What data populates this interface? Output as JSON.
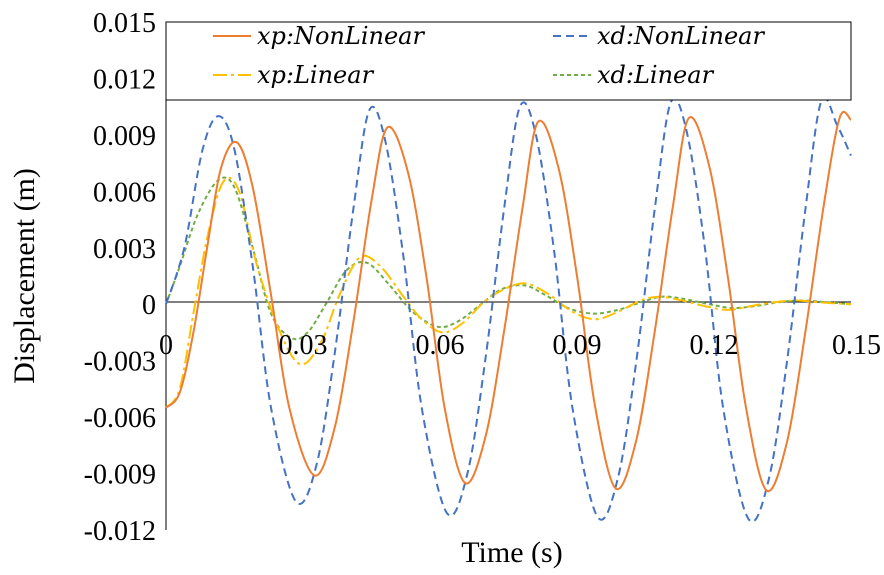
{
  "chart_data": {
    "type": "line",
    "title": "",
    "xlabel": "Time (s)",
    "ylabel": "Displacement (m)",
    "xlim": [
      0,
      0.15
    ],
    "ylim": [
      -0.012,
      0.015
    ],
    "xticks": [
      "0",
      "0.03",
      "0.06",
      "0.09",
      "0.12",
      "0.15"
    ],
    "xtick_values": [
      0,
      0.03,
      0.06,
      0.09,
      0.12,
      0.15
    ],
    "yticks": [
      "0.015",
      "0.012",
      "0.009",
      "0.006",
      "0.003",
      "0",
      "-0.003",
      "-0.006",
      "-0.009",
      "-0.012"
    ],
    "ytick_values": [
      0.015,
      0.012,
      0.009,
      0.006,
      0.003,
      0,
      -0.003,
      -0.006,
      -0.009,
      -0.012
    ],
    "grid": false,
    "legend_position": "top",
    "series": [
      {
        "name": "xp:NonLinear",
        "color": "#ED7D31",
        "dash": "solid",
        "points": [
          [
            0,
            -0.0055
          ],
          [
            0.003,
            -0.0047
          ],
          [
            0.006,
            -0.0015
          ],
          [
            0.009,
            0.003
          ],
          [
            0.012,
            0.0072
          ],
          [
            0.0155,
            0.0086
          ],
          [
            0.019,
            0.0062
          ],
          [
            0.023,
            0.0005
          ],
          [
            0.027,
            -0.0055
          ],
          [
            0.0325,
            -0.0091
          ],
          [
            0.037,
            -0.0065
          ],
          [
            0.041,
            -0.001
          ],
          [
            0.045,
            0.0055
          ],
          [
            0.0485,
            0.0094
          ],
          [
            0.053,
            0.007
          ],
          [
            0.057,
            0.0015
          ],
          [
            0.061,
            -0.0055
          ],
          [
            0.0655,
            -0.0095
          ],
          [
            0.07,
            -0.007
          ],
          [
            0.074,
            -0.0015
          ],
          [
            0.078,
            0.005
          ],
          [
            0.0815,
            0.0097
          ],
          [
            0.086,
            0.0072
          ],
          [
            0.09,
            0.0015
          ],
          [
            0.094,
            -0.0055
          ],
          [
            0.0985,
            -0.0098
          ],
          [
            0.103,
            -0.0072
          ],
          [
            0.107,
            -0.0015
          ],
          [
            0.111,
            0.0052
          ],
          [
            0.1145,
            0.0099
          ],
          [
            0.119,
            0.0073
          ],
          [
            0.123,
            0.0015
          ],
          [
            0.127,
            -0.0055
          ],
          [
            0.1315,
            -0.0099
          ],
          [
            0.136,
            -0.0073
          ],
          [
            0.14,
            -0.0015
          ],
          [
            0.144,
            0.0052
          ],
          [
            0.1475,
            0.0099
          ],
          [
            0.15,
            0.0098
          ]
        ]
      },
      {
        "name": "xd:NonLinear",
        "color": "#4472C4",
        "dash": "dashed",
        "points": [
          [
            0,
            0
          ],
          [
            0.004,
            0.003
          ],
          [
            0.008,
            0.0082
          ],
          [
            0.0115,
            0.01
          ],
          [
            0.015,
            0.0082
          ],
          [
            0.019,
            0.002
          ],
          [
            0.023,
            -0.0055
          ],
          [
            0.0285,
            -0.0105
          ],
          [
            0.033,
            -0.0085
          ],
          [
            0.037,
            -0.0025
          ],
          [
            0.041,
            0.005
          ],
          [
            0.0445,
            0.0103
          ],
          [
            0.048,
            0.0087
          ],
          [
            0.052,
            0.0025
          ],
          [
            0.056,
            -0.0055
          ],
          [
            0.0615,
            -0.0111
          ],
          [
            0.066,
            -0.009
          ],
          [
            0.07,
            -0.0028
          ],
          [
            0.074,
            0.005
          ],
          [
            0.0775,
            0.0105
          ],
          [
            0.081,
            0.009
          ],
          [
            0.085,
            0.0028
          ],
          [
            0.089,
            -0.0055
          ],
          [
            0.0945,
            -0.0113
          ],
          [
            0.099,
            -0.0092
          ],
          [
            0.103,
            -0.003
          ],
          [
            0.107,
            0.005
          ],
          [
            0.1105,
            0.0107
          ],
          [
            0.114,
            0.0092
          ],
          [
            0.118,
            0.003
          ],
          [
            0.122,
            -0.0055
          ],
          [
            0.1275,
            -0.0114
          ],
          [
            0.132,
            -0.0093
          ],
          [
            0.136,
            -0.003
          ],
          [
            0.14,
            0.005
          ],
          [
            0.1435,
            0.0108
          ],
          [
            0.147,
            0.0095
          ],
          [
            0.15,
            0.0079
          ]
        ]
      },
      {
        "name": "xp:Linear",
        "color": "#FFC000",
        "dash": "dashdot",
        "points": [
          [
            0,
            -0.0055
          ],
          [
            0.003,
            -0.0045
          ],
          [
            0.006,
            -0.0005
          ],
          [
            0.009,
            0.0035
          ],
          [
            0.0125,
            0.0065
          ],
          [
            0.016,
            0.006
          ],
          [
            0.02,
            0.002
          ],
          [
            0.025,
            -0.0015
          ],
          [
            0.0295,
            -0.0032
          ],
          [
            0.034,
            -0.002
          ],
          [
            0.038,
            0.0005
          ],
          [
            0.0425,
            0.0025
          ],
          [
            0.047,
            0.002
          ],
          [
            0.052,
            0.0004
          ],
          [
            0.056,
            -0.0008
          ],
          [
            0.0605,
            -0.0015
          ],
          [
            0.065,
            -0.001
          ],
          [
            0.07,
            0.0002
          ],
          [
            0.075,
            0.0009
          ],
          [
            0.079,
            0.0011
          ],
          [
            0.084,
            0.0005
          ],
          [
            0.089,
            -0.0004
          ],
          [
            0.094,
            -0.0008
          ],
          [
            0.099,
            -0.0004
          ],
          [
            0.104,
            0.0002
          ],
          [
            0.108,
            0.0004
          ],
          [
            0.113,
            0.0002
          ],
          [
            0.118,
            -0.0001
          ],
          [
            0.123,
            -0.0003
          ],
          [
            0.128,
            -0.0001
          ],
          [
            0.133,
            0.0001
          ],
          [
            0.138,
            0.0002
          ],
          [
            0.143,
            0.0001
          ],
          [
            0.15,
            0
          ]
        ]
      },
      {
        "name": "xd:Linear",
        "color": "#70AD47",
        "dash": "dotted",
        "points": [
          [
            0,
            0
          ],
          [
            0.003,
            0.002
          ],
          [
            0.007,
            0.0048
          ],
          [
            0.0115,
            0.0066
          ],
          [
            0.015,
            0.0062
          ],
          [
            0.019,
            0.003
          ],
          [
            0.023,
            -0.0005
          ],
          [
            0.0275,
            -0.0018
          ],
          [
            0.031,
            -0.0015
          ],
          [
            0.035,
            0
          ],
          [
            0.0395,
            0.0018
          ],
          [
            0.044,
            0.0022
          ],
          [
            0.049,
            0.001
          ],
          [
            0.054,
            -0.0004
          ],
          [
            0.0595,
            -0.0012
          ],
          [
            0.064,
            -0.0009
          ],
          [
            0.069,
            0
          ],
          [
            0.0735,
            0.0008
          ],
          [
            0.0785,
            0.001
          ],
          [
            0.083,
            0.0005
          ],
          [
            0.088,
            -0.0002
          ],
          [
            0.0935,
            -0.0005
          ],
          [
            0.099,
            -0.0003
          ],
          [
            0.104,
            0.0001
          ],
          [
            0.1085,
            0.0004
          ],
          [
            0.113,
            0.0003
          ],
          [
            0.119,
            0
          ],
          [
            0.124,
            -0.0002
          ],
          [
            0.129,
            -0.0001
          ],
          [
            0.134,
            0.0001
          ],
          [
            0.139,
            0.0002
          ],
          [
            0.145,
            0.0001
          ],
          [
            0.15,
            0
          ]
        ]
      }
    ]
  }
}
